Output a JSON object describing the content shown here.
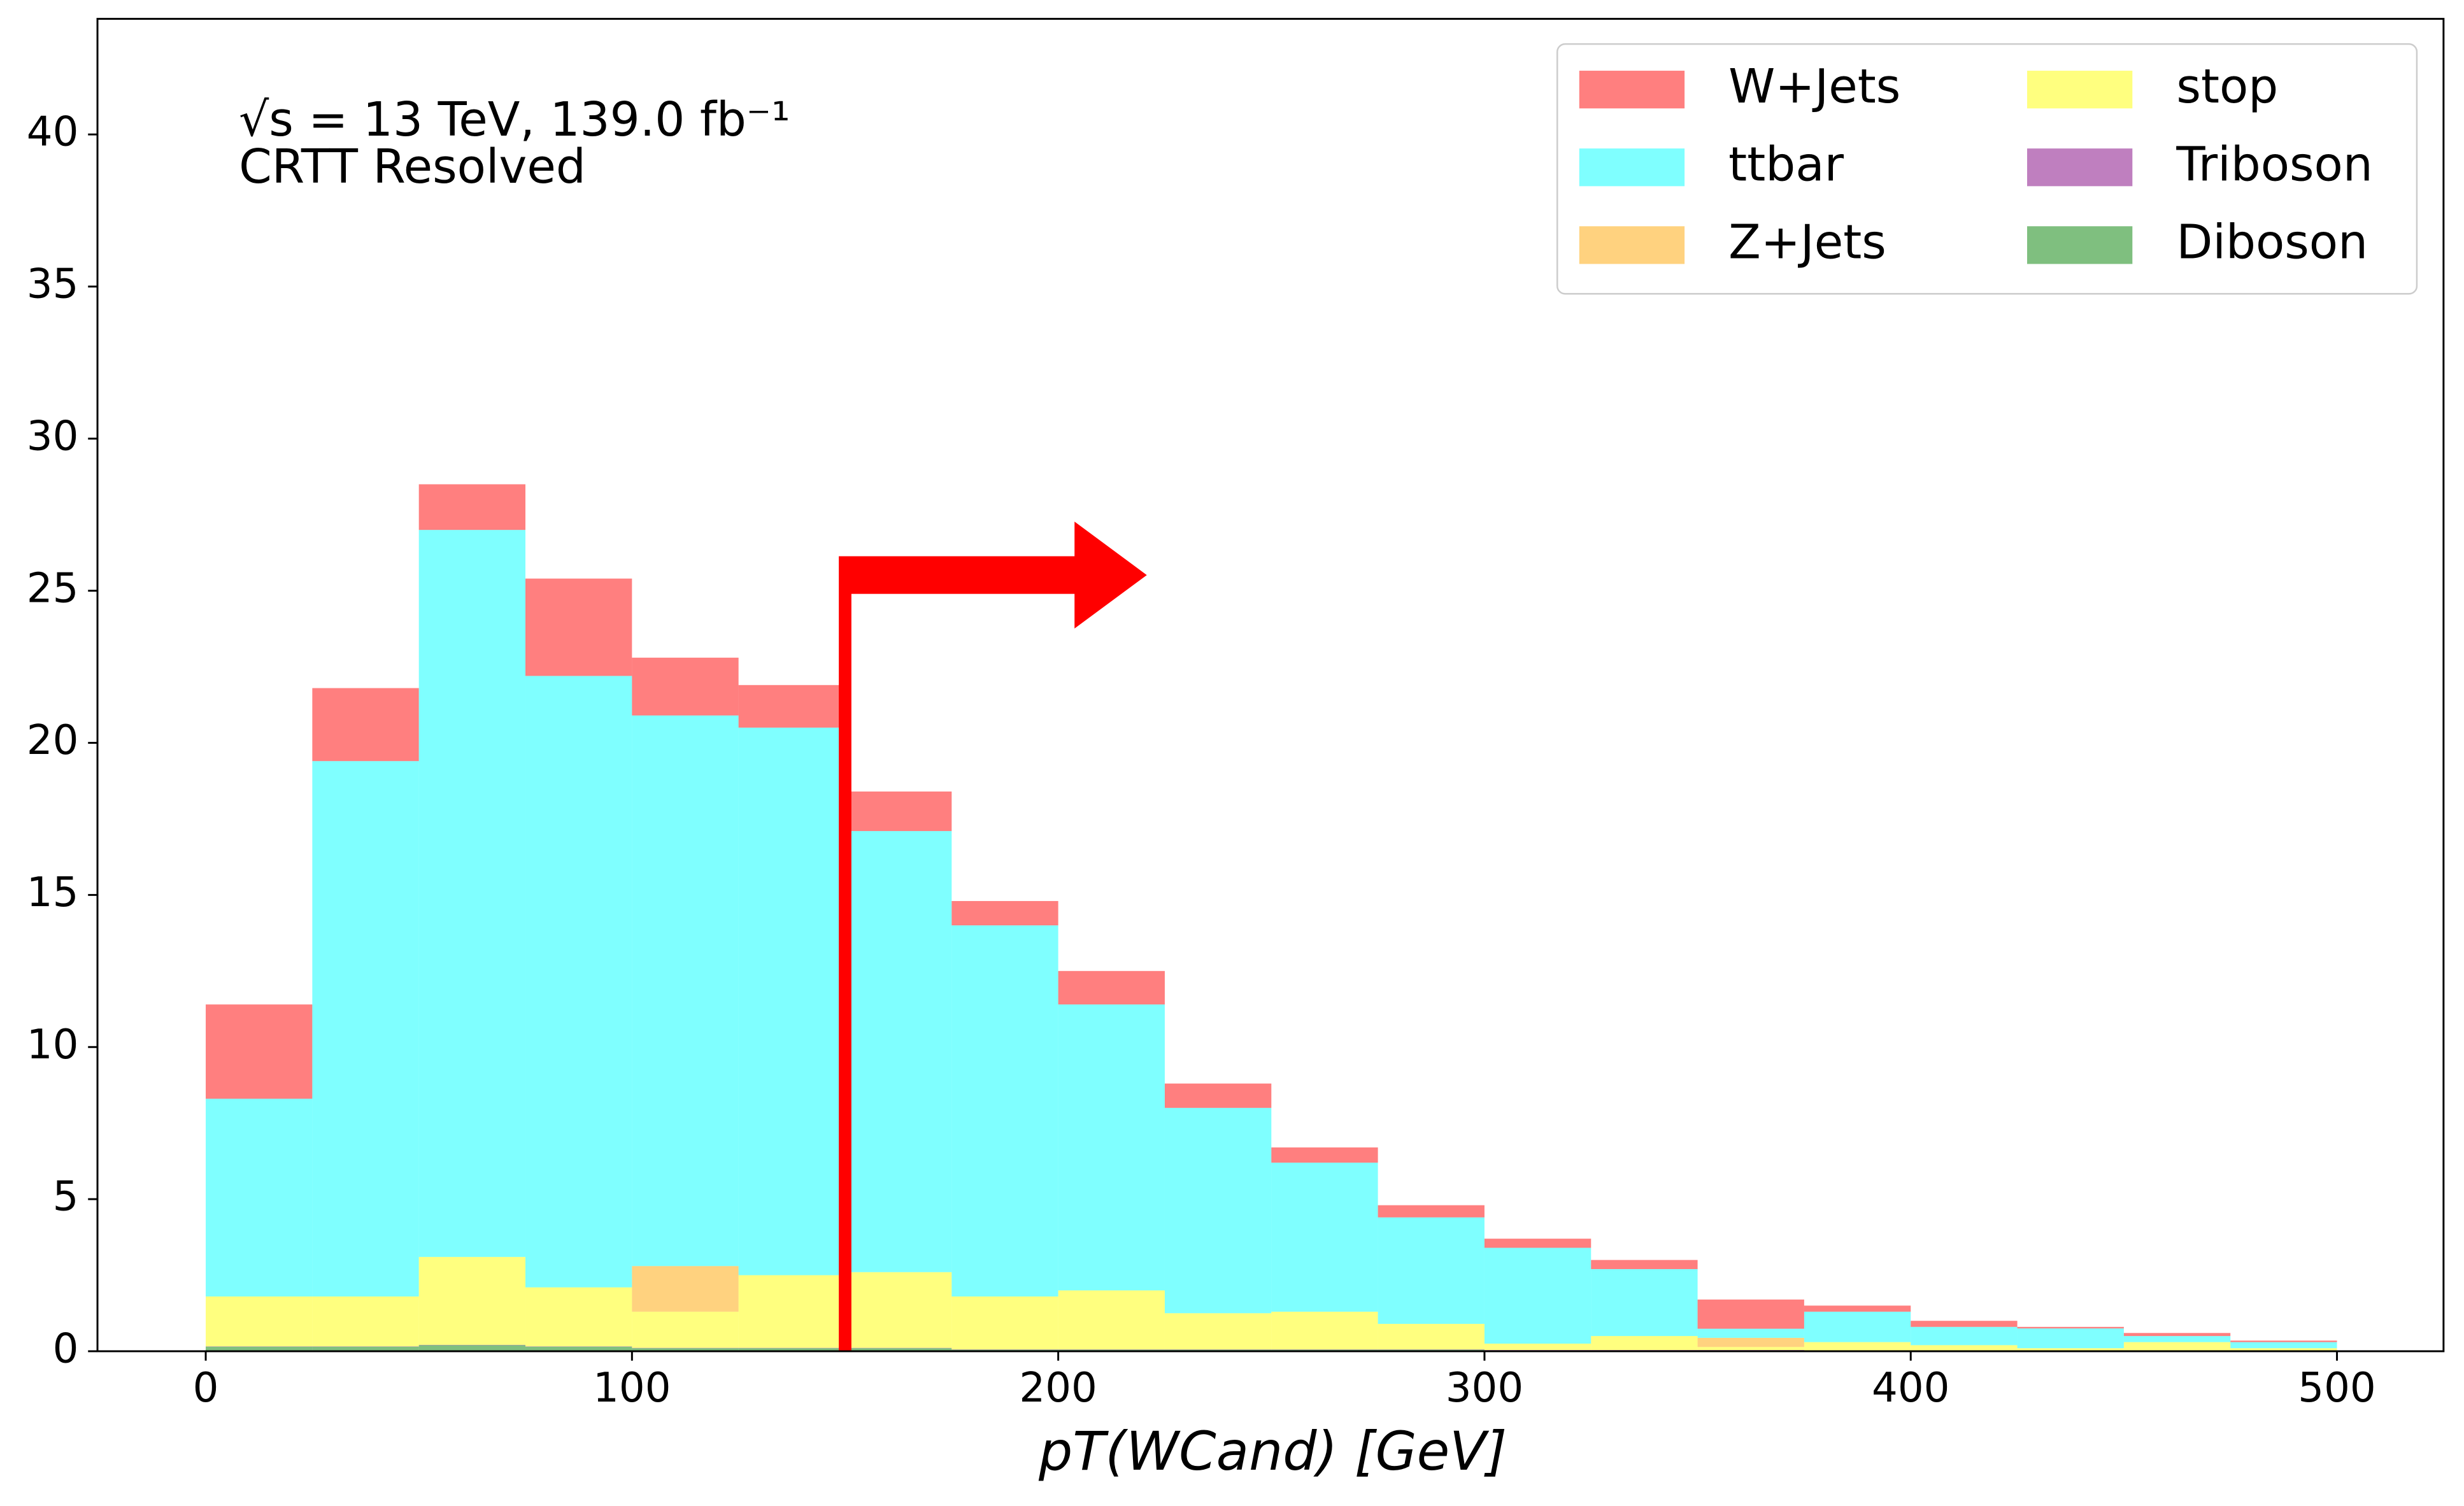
{
  "chart_data": {
    "type": "stacked_histogram",
    "annotations": [
      "√s = 13 TeV, 139.0 fb⁻¹",
      "CRTT Resolved"
    ],
    "xlabel": "pT(WCand) [GeV]",
    "bins": [
      0,
      25,
      50,
      75,
      100,
      125,
      150,
      175,
      200,
      225,
      250,
      275,
      300,
      325,
      350,
      375,
      400,
      425,
      450,
      475,
      500
    ],
    "series": [
      {
        "name": "W+Jets",
        "color": "#ff0000",
        "values": [
          3.1,
          2.4,
          1.5,
          3.2,
          1.9,
          1.4,
          1.3,
          0.8,
          1.1,
          0.8,
          0.5,
          0.4,
          0.3,
          0.3,
          0.96,
          0.2,
          0.2,
          0.05,
          0.1,
          0.05
        ]
      },
      {
        "name": "ttbar",
        "color": "#00ffff",
        "values": [
          6.5,
          17.6,
          23.9,
          20.1,
          18.1,
          18.0,
          14.5,
          12.2,
          9.4,
          6.75,
          4.9,
          3.5,
          3.15,
          2.2,
          0.3,
          1.0,
          0.6,
          0.65,
          0.2,
          0.2
        ]
      },
      {
        "name": "Z+Jets",
        "color": "#ffa500",
        "values": [
          0,
          0,
          0,
          0,
          1.5,
          0,
          0,
          0,
          0,
          0,
          0,
          0,
          0,
          0,
          0.3,
          0,
          0,
          0,
          0,
          0
        ]
      },
      {
        "name": "stop",
        "color": "#ffff00",
        "values": [
          1.64,
          1.64,
          2.89,
          1.94,
          1.19,
          2.39,
          2.49,
          1.74,
          1.94,
          1.19,
          1.24,
          0.84,
          0.21,
          0.46,
          0.1,
          0.27,
          0.17,
          0.07,
          0.27,
          0.08
        ]
      },
      {
        "name": "Triboson",
        "color": "#800080",
        "values": [
          0.01,
          0.01,
          0.01,
          0.01,
          0.01,
          0.01,
          0.01,
          0.01,
          0.01,
          0.01,
          0.01,
          0.01,
          0.01,
          0.01,
          0.01,
          0.01,
          0.01,
          0.01,
          0.01,
          0.01
        ]
      },
      {
        "name": "Diboson",
        "color": "#008000",
        "values": [
          0.15,
          0.15,
          0.2,
          0.15,
          0.1,
          0.1,
          0.1,
          0.05,
          0.05,
          0.05,
          0.05,
          0.05,
          0.03,
          0.03,
          0.03,
          0.02,
          0.02,
          0.02,
          0.02,
          0.01
        ]
      }
    ],
    "opacity": 0.5,
    "cut_value": 150,
    "cut_color": "#ff0000",
    "xlim": [
      -25.4,
      525
    ],
    "ylim": [
      0,
      43.8
    ],
    "xticks": [
      0,
      100,
      200,
      300,
      400,
      500
    ],
    "yticks": [
      0,
      5,
      10,
      15,
      20,
      25,
      30,
      35,
      40
    ],
    "legend": "upper right"
  }
}
